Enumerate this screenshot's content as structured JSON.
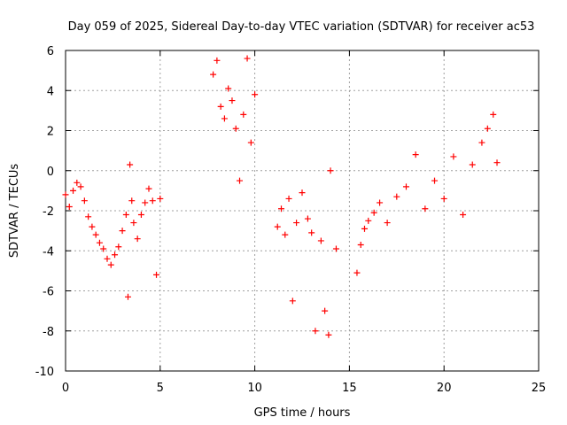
{
  "chart_data": {
    "type": "scatter",
    "title": "Day 059 of 2025, Sidereal Day-to-day VTEC variation (SDTVAR) for receiver ac53",
    "xlabel": "GPS time / hours",
    "ylabel": "SDTVAR / TECUs",
    "xlim": [
      0,
      25
    ],
    "ylim": [
      -10,
      6
    ],
    "xticks": [
      0,
      5,
      10,
      15,
      20,
      25
    ],
    "yticks": [
      -10,
      -8,
      -6,
      -4,
      -2,
      0,
      2,
      4,
      6
    ],
    "grid": true,
    "marker": "+",
    "series": [
      {
        "name": "SDTVAR",
        "color": "#ff0000",
        "x": [
          0.0,
          0.2,
          0.4,
          0.6,
          0.8,
          1.0,
          1.2,
          1.4,
          1.6,
          1.8,
          2.0,
          2.2,
          2.4,
          2.6,
          2.8,
          3.0,
          3.2,
          3.3,
          3.4,
          3.5,
          3.6,
          3.8,
          4.0,
          4.2,
          4.4,
          4.6,
          4.8,
          5.0,
          7.8,
          8.0,
          8.2,
          8.4,
          8.6,
          8.8,
          9.0,
          9.2,
          9.4,
          9.6,
          9.8,
          10.0,
          11.2,
          11.4,
          11.6,
          11.8,
          12.0,
          12.2,
          12.5,
          12.8,
          13.0,
          13.2,
          13.5,
          13.7,
          13.9,
          14.0,
          14.3,
          15.4,
          15.6,
          15.8,
          16.0,
          16.3,
          16.6,
          17.0,
          17.5,
          18.0,
          18.5,
          19.0,
          19.5,
          20.0,
          20.5,
          21.0,
          21.5,
          22.0,
          22.3,
          22.6,
          22.8
        ],
        "y": [
          -1.2,
          -1.8,
          -1.0,
          -0.6,
          -0.8,
          -1.5,
          -2.3,
          -2.8,
          -3.2,
          -3.6,
          -3.9,
          -4.4,
          -4.7,
          -4.2,
          -3.8,
          -3.0,
          -2.2,
          -6.3,
          0.3,
          -1.5,
          -2.6,
          -3.4,
          -2.2,
          -1.6,
          -0.9,
          -1.5,
          -5.2,
          -1.4,
          4.8,
          5.5,
          3.2,
          2.6,
          4.1,
          3.5,
          2.1,
          -0.5,
          2.8,
          5.6,
          1.4,
          3.8,
          -2.8,
          -1.9,
          -3.2,
          -1.4,
          -6.5,
          -2.6,
          -1.1,
          -2.4,
          -3.1,
          -8.0,
          -3.5,
          -7.0,
          -8.2,
          0.0,
          -3.9,
          -5.1,
          -3.7,
          -2.9,
          -2.5,
          -2.1,
          -1.6,
          -2.6,
          -1.3,
          -0.8,
          0.8,
          -1.9,
          -0.5,
          -1.4,
          0.7,
          -2.2,
          0.3,
          1.4,
          2.1,
          2.8,
          0.4
        ]
      }
    ]
  }
}
